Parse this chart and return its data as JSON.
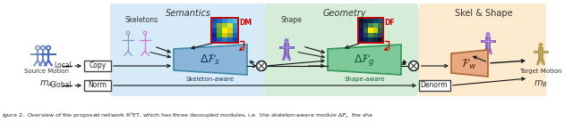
{
  "fig_width": 6.4,
  "fig_height": 1.37,
  "bg_color": "#ffffff",
  "semantics_bg": "#d6eaf8",
  "geometry_bg": "#d5edd8",
  "skelshape_bg": "#fdebd0",
  "semantics_label": "Semantics",
  "geometry_label": "Geometry",
  "skelshape_label": "Skel & Shape",
  "skeletons_label": "Skeletons",
  "shape_label": "Shape",
  "dm_label": "DM",
  "df_label": "DF",
  "source_label": "Source Motion",
  "target_label": "Target Motion",
  "ma_label": "$m_A$",
  "mb_label": "$m_B$",
  "local_label": "Local",
  "global_label": "Global",
  "copy_label": "Copy",
  "norm_label": "Norm",
  "denorm_label": "Denorm",
  "skel_aware_label": "Skeleton-aware",
  "shape_aware_label": "Shape-aware",
  "delta_fs_label": "$\\Delta\\mathcal{F}_s$",
  "delta_fg_label": "$\\Delta\\mathcal{F}_g$",
  "fw_label": "$\\mathcal{F}_w$",
  "caption": "igure 2.  Overview of the proposed network R$^2$ET, which has three decoupled modules, i.e.  the skeleton-aware module $\\Delta\\mathcal{F}_s$  the sha",
  "arrow_color": "#111111",
  "red_color": "#cc0000",
  "delta_fs_color": "#8ab4d8",
  "delta_fg_color": "#7dc99a",
  "fw_color": "#e8a882",
  "box_edge_color": "#444444",
  "skel_color1": "#8899cc",
  "skel_color2": "#cc77cc",
  "shape_color": "#6644aa",
  "skelshape_color": "#8866cc"
}
